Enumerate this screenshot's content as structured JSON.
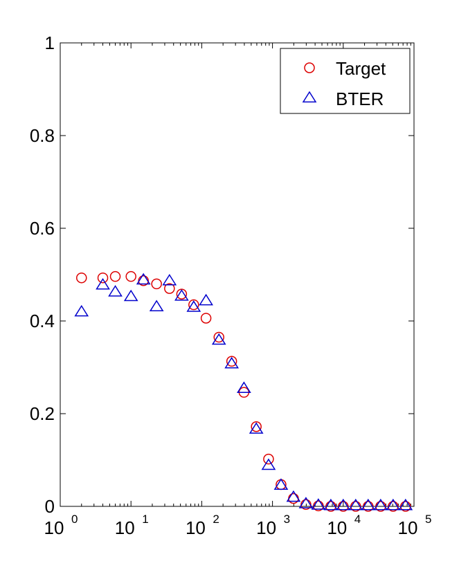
{
  "chart_data": {
    "type": "scatter",
    "title": "",
    "xlabel": "",
    "ylabel": "",
    "x_scale": "log",
    "xlim": [
      1,
      100000
    ],
    "ylim": [
      0,
      1
    ],
    "x_ticks": [
      {
        "base": "10",
        "exp": "0"
      },
      {
        "base": "10",
        "exp": "1"
      },
      {
        "base": "10",
        "exp": "2"
      },
      {
        "base": "10",
        "exp": "3"
      },
      {
        "base": "10",
        "exp": "4"
      },
      {
        "base": "10",
        "exp": "5"
      }
    ],
    "y_ticks": [
      "0",
      "0.2",
      "0.4",
      "0.6",
      "0.8",
      "1"
    ],
    "grid": false,
    "legend_position": "top-right",
    "series": [
      {
        "name": "Target",
        "marker": "circle",
        "color": "#dd0000",
        "points": [
          [
            2,
            0.493
          ],
          [
            4,
            0.493
          ],
          [
            6,
            0.496
          ],
          [
            10,
            0.496
          ],
          [
            15,
            0.487
          ],
          [
            23,
            0.48
          ],
          [
            35,
            0.47
          ],
          [
            52,
            0.458
          ],
          [
            77,
            0.435
          ],
          [
            115,
            0.406
          ],
          [
            175,
            0.365
          ],
          [
            265,
            0.313
          ],
          [
            395,
            0.246
          ],
          [
            590,
            0.172
          ],
          [
            880,
            0.102
          ],
          [
            1320,
            0.047
          ],
          [
            1980,
            0.017
          ],
          [
            2970,
            0.004
          ],
          [
            4450,
            0.001
          ],
          [
            6680,
            0.0
          ],
          [
            10000,
            0.0
          ],
          [
            15000,
            0.0
          ],
          [
            22500,
            0.0
          ],
          [
            33800,
            0.0
          ],
          [
            50700,
            0.0
          ],
          [
            76000,
            0.0
          ]
        ]
      },
      {
        "name": "BTER",
        "marker": "triangle",
        "color": "#0000cc",
        "points": [
          [
            2,
            0.419
          ],
          [
            4,
            0.477
          ],
          [
            6,
            0.462
          ],
          [
            10,
            0.452
          ],
          [
            15,
            0.488
          ],
          [
            23,
            0.43
          ],
          [
            35,
            0.486
          ],
          [
            52,
            0.453
          ],
          [
            77,
            0.429
          ],
          [
            115,
            0.443
          ],
          [
            175,
            0.358
          ],
          [
            265,
            0.307
          ],
          [
            395,
            0.254
          ],
          [
            590,
            0.166
          ],
          [
            880,
            0.088
          ],
          [
            1320,
            0.045
          ],
          [
            1980,
            0.019
          ],
          [
            2970,
            0.005
          ],
          [
            4450,
            0.002
          ],
          [
            6680,
            0.001
          ],
          [
            10000,
            0.001
          ],
          [
            15000,
            0.001
          ],
          [
            22500,
            0.001
          ],
          [
            33800,
            0.001
          ],
          [
            50700,
            0.001
          ],
          [
            76000,
            0.001
          ]
        ]
      }
    ]
  }
}
